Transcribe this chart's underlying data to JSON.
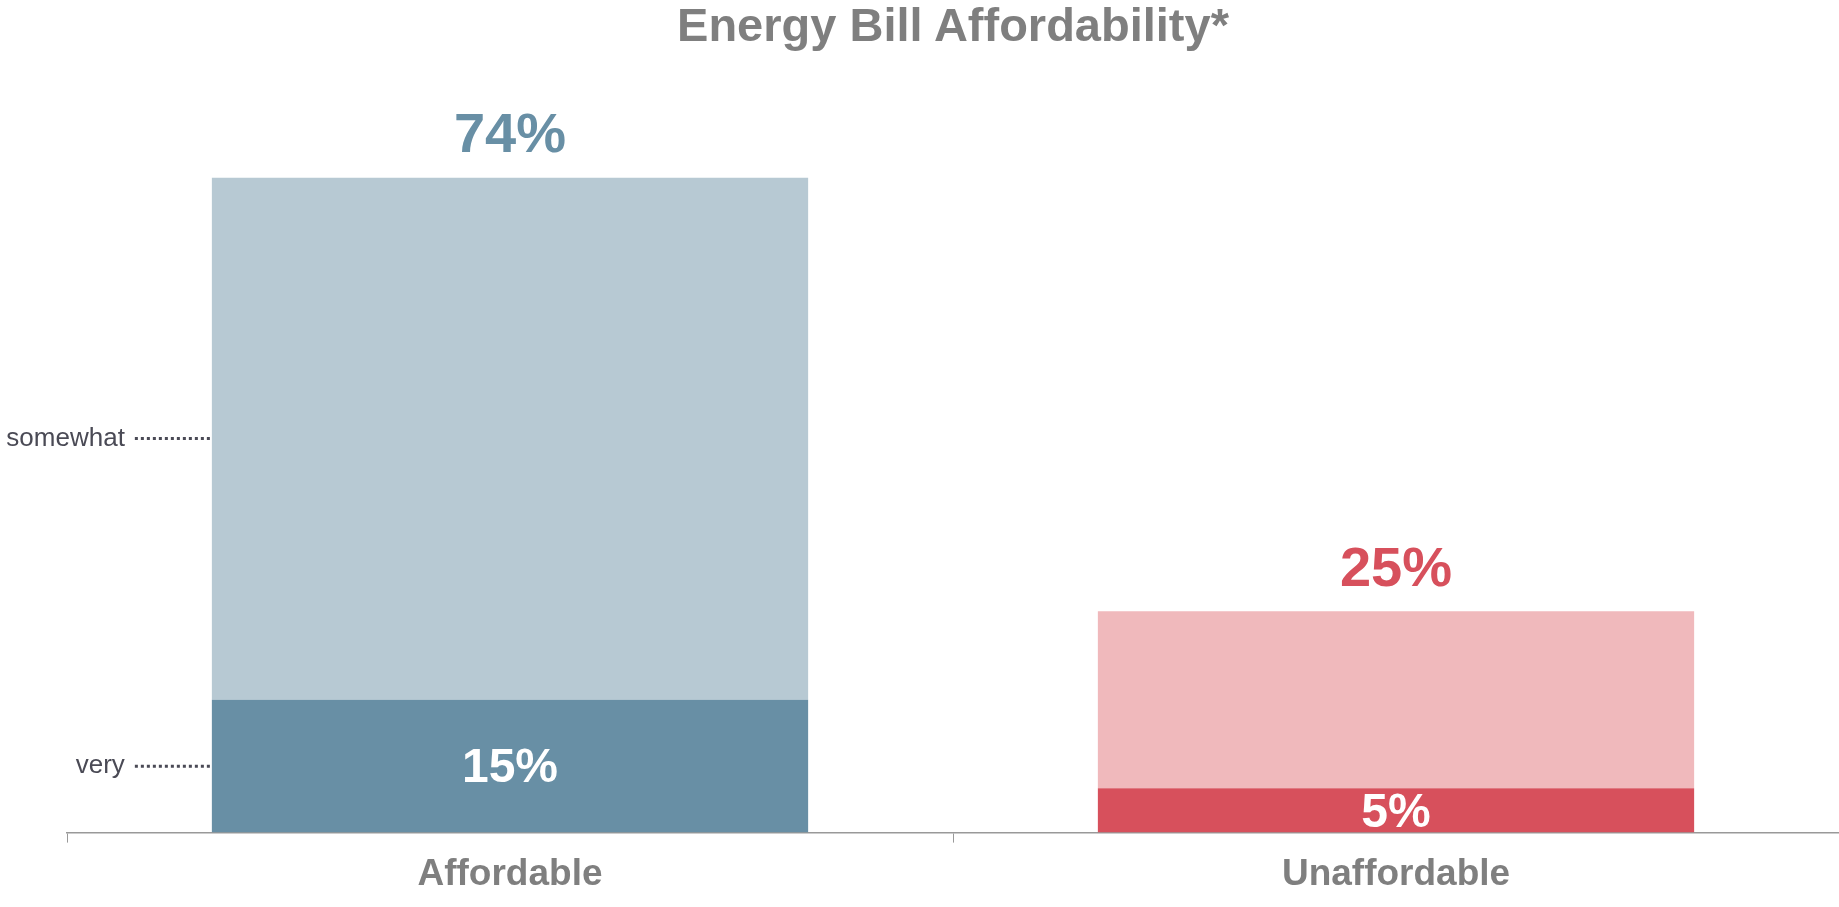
{
  "chart_data": {
    "type": "bar",
    "title": "Energy Bill Affordability*",
    "categories": [
      "Affordable",
      "Unaffordable"
    ],
    "stacked": true,
    "series": [
      {
        "name": "very",
        "colors": [
          "#688fa5",
          "#d7505c"
        ],
        "values": [
          15,
          5
        ],
        "value_labels": [
          "15%",
          "5%"
        ]
      },
      {
        "name": "somewhat",
        "colors": [
          "#b7c9d3",
          "#f0b9bc"
        ],
        "values": [
          59,
          20
        ]
      }
    ],
    "totals": [
      "74%",
      "25%"
    ],
    "grid": false
  }
}
